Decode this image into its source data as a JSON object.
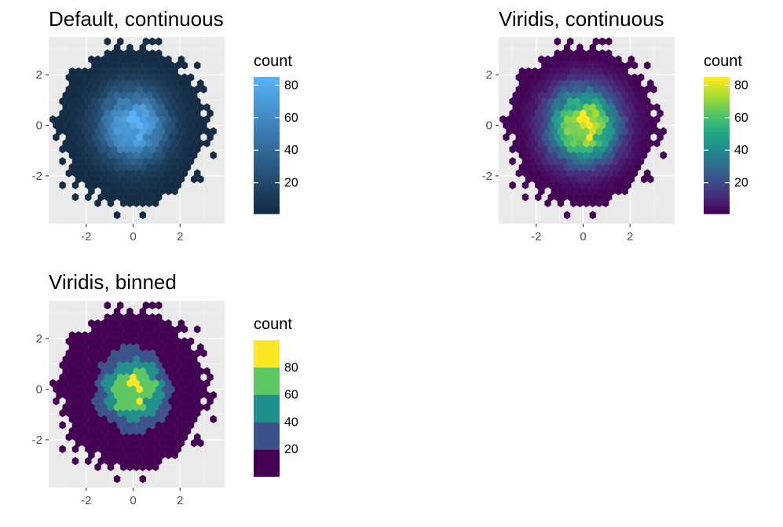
{
  "chart_data": [
    {
      "type": "heatmap",
      "geom": "hexbin",
      "title": "Default, continuous",
      "xlabel": "",
      "ylabel": "",
      "xlim": [
        -3.6,
        3.9
      ],
      "ylim": [
        -3.9,
        3.5
      ],
      "x_ticks": [
        -2,
        0,
        2
      ],
      "y_ticks": [
        -2,
        0,
        2
      ],
      "x_tick_labels": [
        "-2",
        "0",
        "2"
      ],
      "y_tick_labels": [
        "-2",
        "0",
        "2"
      ],
      "grid": true,
      "panel_background": "#ebebeb",
      "data_description": "2D hexagon-binned counts of a bivariate standard normal sample; count peaks near (0, 0) at about 85",
      "peak_count": 85,
      "approx_spread_sd": 1.0,
      "legend": {
        "title": "count",
        "kind": "continuous",
        "range": [
          1,
          85
        ],
        "breaks": [
          20,
          40,
          60,
          80
        ],
        "labels": [
          "20",
          "40",
          "60",
          "80"
        ],
        "colors": [
          "#132B43",
          "#56B1F7"
        ],
        "placement": "right"
      }
    },
    {
      "type": "heatmap",
      "geom": "hexbin",
      "title": "Viridis, continuous",
      "xlabel": "",
      "ylabel": "",
      "xlim": [
        -3.6,
        3.9
      ],
      "ylim": [
        -3.9,
        3.5
      ],
      "x_ticks": [
        -2,
        0,
        2
      ],
      "y_ticks": [
        -2,
        0,
        2
      ],
      "x_tick_labels": [
        "-2",
        "0",
        "2"
      ],
      "y_tick_labels": [
        "-2",
        "0",
        "2"
      ],
      "grid": true,
      "panel_background": "#ebebeb",
      "data_description": "2D hexagon-binned counts of a bivariate standard normal sample; count peaks near (0, 0) at about 85",
      "peak_count": 85,
      "approx_spread_sd": 1.0,
      "legend": {
        "title": "count",
        "kind": "continuous",
        "range": [
          1,
          85
        ],
        "breaks": [
          20,
          40,
          60,
          80
        ],
        "labels": [
          "20",
          "40",
          "60",
          "80"
        ],
        "colors": [
          "#440154",
          "#482878",
          "#3E4A89",
          "#31688E",
          "#26828E",
          "#1F9E89",
          "#35B779",
          "#6DCD59",
          "#B4DE2C",
          "#FDE725"
        ],
        "placement": "right"
      }
    },
    {
      "type": "heatmap",
      "geom": "hexbin",
      "title": "Viridis, binned",
      "xlabel": "",
      "ylabel": "",
      "xlim": [
        -3.6,
        3.9
      ],
      "ylim": [
        -3.9,
        3.5
      ],
      "x_ticks": [
        -2,
        0,
        2
      ],
      "y_ticks": [
        -2,
        0,
        2
      ],
      "x_tick_labels": [
        "-2",
        "0",
        "2"
      ],
      "y_tick_labels": [
        "-2",
        "0",
        "2"
      ],
      "grid": true,
      "panel_background": "#ebebeb",
      "data_description": "2D hexagon-binned counts of a bivariate standard normal sample; count peaks near (0, 0) at about 85",
      "peak_count": 85,
      "approx_spread_sd": 1.0,
      "legend": {
        "title": "count",
        "kind": "binned",
        "range": [
          1,
          85
        ],
        "breaks": [
          20,
          40,
          60,
          80
        ],
        "labels": [
          "20",
          "40",
          "60",
          "80"
        ],
        "bin_colors": [
          "#440154",
          "#3B528B",
          "#21908C",
          "#5DC863",
          "#FDE725"
        ],
        "placement": "right"
      }
    }
  ]
}
